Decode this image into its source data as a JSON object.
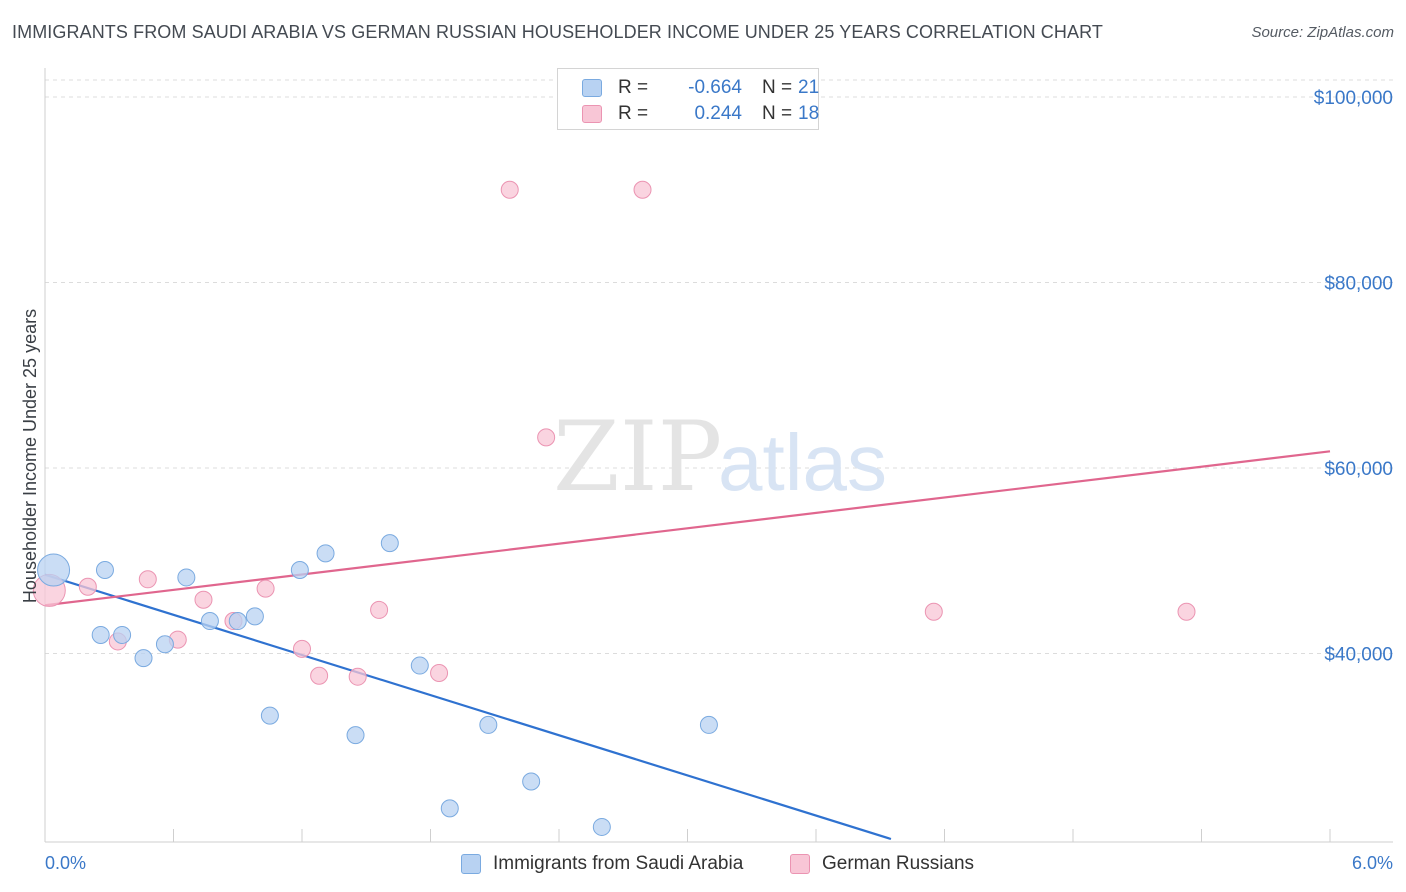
{
  "header": {
    "title": "IMMIGRANTS FROM SAUDI ARABIA VS GERMAN RUSSIAN HOUSEHOLDER INCOME UNDER 25 YEARS CORRELATION CHART",
    "source": "Source: ZipAtlas.com"
  },
  "watermark": {
    "zip": "ZIP",
    "atlas": "atlas"
  },
  "legend": {
    "rows": [
      {
        "r_label": "R =",
        "r_value": "-0.664",
        "n_label": "N =",
        "n_value": "21"
      },
      {
        "r_label": "R =",
        "r_value": "0.244",
        "n_label": "N =",
        "n_value": "18"
      }
    ]
  },
  "bottom_legend": {
    "series1": "Immigrants from Saudi Arabia",
    "series2": "German Russians"
  },
  "colors": {
    "series1_fill": "#b8d2f2",
    "series1_stroke": "#7aaae0",
    "series1_line": "#2f72d0",
    "series2_fill": "#f8c6d6",
    "series2_stroke": "#eb94b2",
    "series2_line": "#e0668e",
    "axis_text": "#3a78c8"
  },
  "chart_data": {
    "type": "scatter",
    "title": "IMMIGRANTS FROM SAUDI ARABIA VS GERMAN RUSSIAN HOUSEHOLDER INCOME UNDER 25 YEARS CORRELATION CHART",
    "xlabel": "",
    "ylabel": "Householder Income Under 25 years",
    "xlim": [
      0,
      6
    ],
    "ylim": [
      20000,
      102000
    ],
    "x_ticks": [
      {
        "value": 0,
        "label": "0.0%"
      },
      {
        "value": 6,
        "label": "6.0%"
      }
    ],
    "y_ticks": [
      {
        "value": 40000,
        "label": "$40,000"
      },
      {
        "value": 60000,
        "label": "$60,000"
      },
      {
        "value": 80000,
        "label": "$80,000"
      },
      {
        "value": 100000,
        "label": "$100,000"
      }
    ],
    "series": [
      {
        "name": "Immigrants from Saudi Arabia",
        "points": [
          {
            "x": 0.04,
            "y": 49000,
            "big": true
          },
          {
            "x": 0.28,
            "y": 49000
          },
          {
            "x": 0.26,
            "y": 42000
          },
          {
            "x": 0.36,
            "y": 42000
          },
          {
            "x": 0.46,
            "y": 39500
          },
          {
            "x": 0.56,
            "y": 41000
          },
          {
            "x": 0.66,
            "y": 48200
          },
          {
            "x": 0.77,
            "y": 43500
          },
          {
            "x": 0.9,
            "y": 43500
          },
          {
            "x": 0.98,
            "y": 44000
          },
          {
            "x": 1.05,
            "y": 33300
          },
          {
            "x": 1.19,
            "y": 49000
          },
          {
            "x": 1.31,
            "y": 50800
          },
          {
            "x": 1.45,
            "y": 31200
          },
          {
            "x": 1.61,
            "y": 51900
          },
          {
            "x": 1.75,
            "y": 38700
          },
          {
            "x": 1.89,
            "y": 23300
          },
          {
            "x": 2.07,
            "y": 32300
          },
          {
            "x": 2.27,
            "y": 26200
          },
          {
            "x": 2.6,
            "y": 21300
          },
          {
            "x": 3.1,
            "y": 32300
          }
        ],
        "trend": {
          "x1": 0,
          "y1": 48500,
          "x2": 3.95,
          "y2": 20000
        }
      },
      {
        "name": "German Russians",
        "points": [
          {
            "x": 0.02,
            "y": 46800,
            "big": true
          },
          {
            "x": 0.2,
            "y": 47200
          },
          {
            "x": 0.34,
            "y": 41300
          },
          {
            "x": 0.48,
            "y": 48000
          },
          {
            "x": 0.62,
            "y": 41500
          },
          {
            "x": 0.74,
            "y": 45800
          },
          {
            "x": 0.88,
            "y": 43500
          },
          {
            "x": 1.03,
            "y": 47000
          },
          {
            "x": 1.2,
            "y": 40500
          },
          {
            "x": 1.28,
            "y": 37600
          },
          {
            "x": 1.46,
            "y": 37500
          },
          {
            "x": 1.56,
            "y": 44700
          },
          {
            "x": 1.84,
            "y": 37900
          },
          {
            "x": 2.17,
            "y": 90000
          },
          {
            "x": 2.34,
            "y": 63300
          },
          {
            "x": 2.79,
            "y": 90000
          },
          {
            "x": 4.15,
            "y": 44500
          },
          {
            "x": 5.33,
            "y": 44500
          }
        ],
        "trend": {
          "x1": 0,
          "y1": 45200,
          "x2": 6,
          "y2": 61800
        }
      }
    ]
  }
}
